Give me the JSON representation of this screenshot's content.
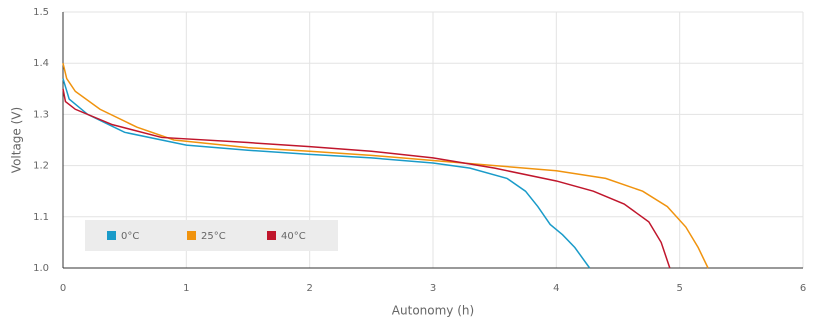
{
  "chart_data": {
    "type": "line",
    "xlabel": "Autonomy (h)",
    "ylabel": "Voltage (V)",
    "xlim": [
      0,
      6
    ],
    "xticks": [
      0,
      1,
      2,
      3,
      4,
      5,
      6
    ],
    "ylim": [
      1,
      1.5
    ],
    "yticks": [
      {
        "value": 1,
        "label": "1.0"
      },
      1.1,
      1.2,
      1.3,
      1.4,
      1.5
    ],
    "grid": true,
    "legend": "lower left",
    "series": [
      {
        "name": "0°C",
        "color": "#1a9bc9",
        "x": [
          0,
          0.05,
          0.2,
          0.5,
          1,
          1.5,
          2,
          2.5,
          3,
          3.3,
          3.6,
          3.75,
          3.85,
          3.95,
          4.05,
          4.15,
          4.27
        ],
        "values": [
          1.37,
          1.33,
          1.3,
          1.265,
          1.24,
          1.23,
          1.222,
          1.215,
          1.205,
          1.195,
          1.175,
          1.15,
          1.12,
          1.085,
          1.065,
          1.04,
          1.0
        ]
      },
      {
        "name": "25°C",
        "color": "#f0930e",
        "x": [
          0,
          0.03,
          0.1,
          0.3,
          0.6,
          0.9,
          1.5,
          2,
          2.5,
          3,
          3.5,
          4,
          4.4,
          4.7,
          4.9,
          5.05,
          5.15,
          5.23
        ],
        "values": [
          1.4,
          1.37,
          1.345,
          1.31,
          1.275,
          1.25,
          1.235,
          1.228,
          1.22,
          1.21,
          1.2,
          1.19,
          1.175,
          1.15,
          1.12,
          1.08,
          1.04,
          1.0
        ]
      },
      {
        "name": "40°C",
        "color": "#c0162c",
        "x": [
          0,
          0.02,
          0.1,
          0.4,
          0.8,
          1.5,
          2,
          2.5,
          3,
          3.5,
          4,
          4.3,
          4.55,
          4.75,
          4.85,
          4.92
        ],
        "values": [
          1.35,
          1.325,
          1.31,
          1.28,
          1.255,
          1.245,
          1.237,
          1.228,
          1.215,
          1.195,
          1.17,
          1.15,
          1.125,
          1.09,
          1.05,
          1.0
        ]
      }
    ]
  }
}
